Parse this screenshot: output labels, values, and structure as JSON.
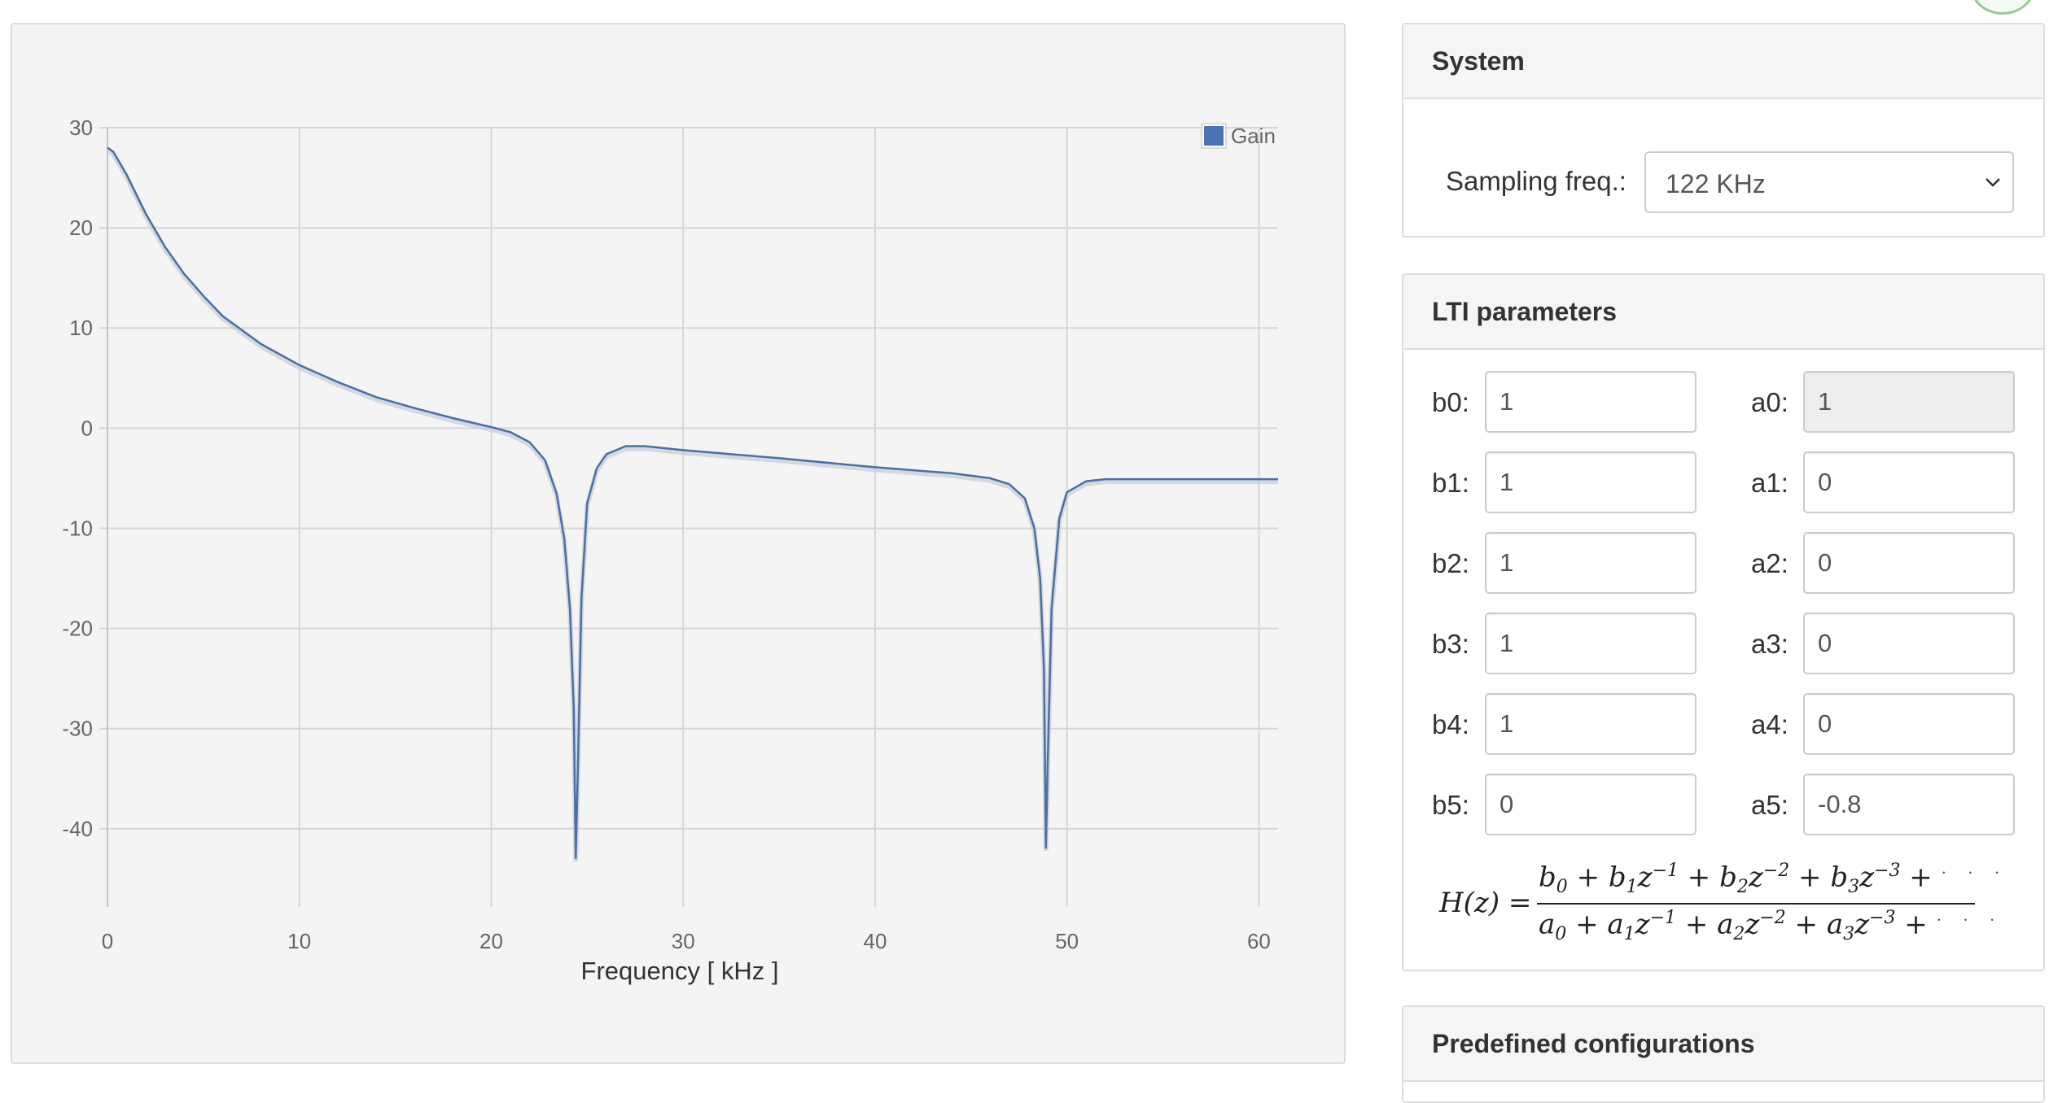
{
  "system_panel": {
    "title": "System",
    "sampling_label": "Sampling freq.:",
    "sampling_value": "122 KHz"
  },
  "lti_panel": {
    "title": "LTI parameters",
    "b_params": [
      {
        "label": "b0:",
        "value": "1"
      },
      {
        "label": "b1:",
        "value": "1"
      },
      {
        "label": "b2:",
        "value": "1"
      },
      {
        "label": "b3:",
        "value": "1"
      },
      {
        "label": "b4:",
        "value": "1"
      },
      {
        "label": "b5:",
        "value": "0"
      }
    ],
    "a_params": [
      {
        "label": "a0:",
        "value": "1",
        "readonly": true
      },
      {
        "label": "a1:",
        "value": "0"
      },
      {
        "label": "a2:",
        "value": "0"
      },
      {
        "label": "a3:",
        "value": "0"
      },
      {
        "label": "a4:",
        "value": "0"
      },
      {
        "label": "a5:",
        "value": "-0.8"
      }
    ]
  },
  "predef_panel": {
    "title": "Predefined configurations"
  },
  "colors": {
    "line": "#4a6fa5",
    "legend_swatch": "#4a72b4",
    "grid": "#d6d6d6"
  },
  "chart_data": {
    "type": "line",
    "title": "",
    "xlabel": "Frequency [ kHz ]",
    "ylabel": "",
    "xlim": [
      0,
      61
    ],
    "ylim": [
      -47,
      30
    ],
    "x_ticks": [
      0,
      10,
      20,
      30,
      40,
      50,
      60
    ],
    "y_ticks": [
      30,
      20,
      10,
      0,
      -10,
      -20,
      -30,
      -40
    ],
    "grid": true,
    "legend_position": "top-right",
    "series": [
      {
        "name": "Gain",
        "x": [
          0,
          0.3,
          1,
          2,
          3,
          4,
          5,
          6,
          8,
          10,
          12,
          14,
          16,
          18,
          20,
          21,
          22,
          22.8,
          23.4,
          23.8,
          24.1,
          24.3,
          24.4,
          24.5,
          24.7,
          25,
          25.5,
          26,
          27,
          28,
          30,
          35,
          40,
          44,
          46,
          47,
          47.8,
          48.3,
          48.6,
          48.8,
          48.9,
          49,
          49.2,
          49.6,
          50,
          51,
          52,
          55,
          61
        ],
        "values": [
          28,
          27.6,
          25.3,
          21.4,
          18.1,
          15.4,
          13.2,
          11.2,
          8.4,
          6.3,
          4.6,
          3.1,
          2.0,
          1.0,
          0.1,
          -0.4,
          -1.4,
          -3.2,
          -6.5,
          -11,
          -18,
          -28,
          -43,
          -35,
          -17,
          -7.5,
          -4,
          -2.6,
          -1.8,
          -1.8,
          -2.2,
          -3.0,
          -3.9,
          -4.5,
          -5.0,
          -5.6,
          -7.0,
          -10,
          -15,
          -24,
          -42,
          -33,
          -18,
          -9,
          -6.4,
          -5.3,
          -5.1,
          -5.1,
          -5.1
        ]
      }
    ]
  }
}
